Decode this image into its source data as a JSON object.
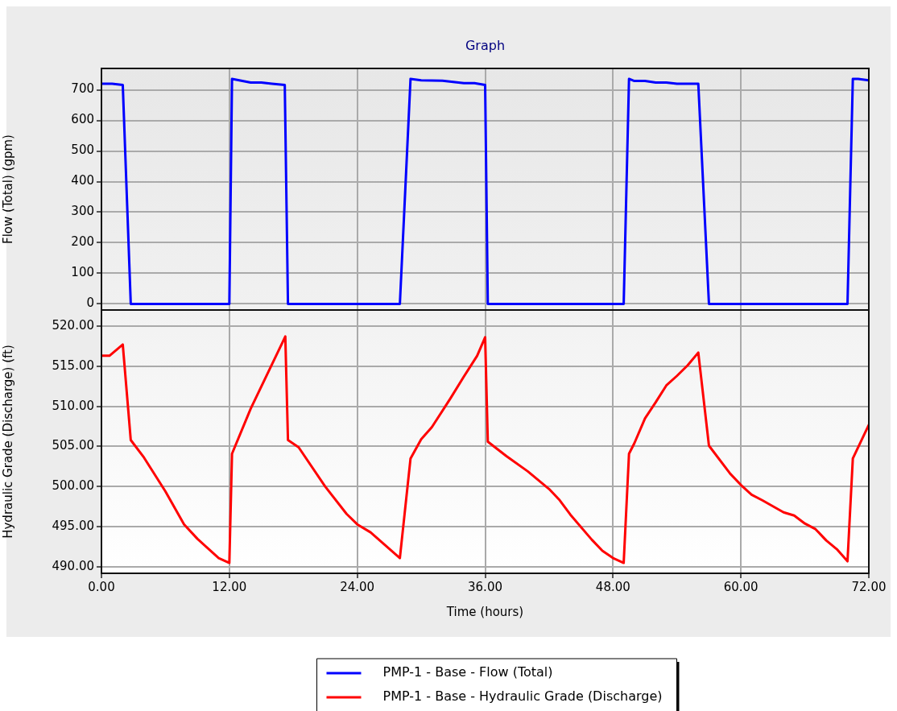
{
  "chart_data": [
    {
      "type": "line",
      "title": "Graph",
      "ylabel": "Flow (Total) (gpm)",
      "tick_labels": "y",
      "xlim": [
        0,
        72
      ],
      "xticks": [
        0,
        12,
        24,
        36,
        48,
        60,
        72
      ],
      "ylim": [
        -20,
        770
      ],
      "yticks": [
        0,
        100,
        200,
        300,
        400,
        500,
        600,
        700
      ],
      "grid": true,
      "legend": "bottom",
      "line_style": "solid",
      "series": [
        {
          "name": "PMP-1 - Base - Flow (Total)",
          "color": "#0000ff",
          "x": [
            0,
            1,
            2,
            2.75,
            12,
            12.25,
            14,
            15,
            16,
            17.2,
            17.5,
            28,
            29,
            30,
            32,
            33,
            34,
            35,
            36,
            36.25,
            49,
            49.5,
            50,
            51,
            52,
            53,
            54,
            56,
            57,
            70,
            70.5,
            71,
            72
          ],
          "values": [
            720,
            720,
            716,
            0,
            0,
            736,
            724,
            724,
            720,
            716,
            0,
            0,
            736,
            731,
            730,
            726,
            722,
            722,
            716,
            0,
            0,
            736,
            729,
            729,
            724,
            724,
            720,
            720,
            0,
            0,
            736,
            736,
            731
          ]
        }
      ]
    },
    {
      "type": "line",
      "xlabel": "Time (hours)",
      "ylabel": "Hydraulic Grade (Discharge) (ft)",
      "xlim": [
        0,
        72
      ],
      "xticks": [
        {
          "value": 0,
          "label": "0.00"
        },
        {
          "value": 12,
          "label": "12.00"
        },
        {
          "value": 24,
          "label": "24.00"
        },
        {
          "value": 36,
          "label": "36.00"
        },
        {
          "value": 48,
          "label": "48.00"
        },
        {
          "value": 60,
          "label": "60.00"
        },
        {
          "value": 72,
          "label": "72.00"
        }
      ],
      "ylim": [
        489.2,
        522
      ],
      "yticks": [
        {
          "value": 490,
          "label": "490.00"
        },
        {
          "value": 495,
          "label": "495.00"
        },
        {
          "value": 500,
          "label": "500.00"
        },
        {
          "value": 505,
          "label": "505.00"
        },
        {
          "value": 510,
          "label": "510.00"
        },
        {
          "value": 515,
          "label": "515.00"
        },
        {
          "value": 520,
          "label": "520.00"
        }
      ],
      "grid": true,
      "legend": "bottom",
      "line_style": "solid",
      "series": [
        {
          "name": "PMP-1 - Base - Hydraulic Grade (Discharge)",
          "color": "#ff0000",
          "x": [
            0,
            0.75,
            2,
            2.75,
            4,
            6,
            7.75,
            9,
            10,
            11,
            12,
            12.25,
            14,
            17,
            17.25,
            17.5,
            18.5,
            21,
            23,
            24,
            25.25,
            28,
            29,
            30,
            31,
            32.75,
            34,
            35.25,
            36,
            36.25,
            38,
            40,
            42,
            43,
            44,
            46,
            47,
            48,
            49,
            49.5,
            50,
            51,
            52,
            53,
            54,
            55,
            56,
            57,
            59,
            60,
            61,
            62,
            64,
            65,
            66,
            67,
            68,
            69,
            70,
            70.5,
            72
          ],
          "values": [
            516.3,
            516.3,
            517.7,
            505.8,
            503.6,
            499.4,
            495.3,
            493.5,
            492.3,
            491.1,
            490.5,
            504.1,
            509.7,
            518.0,
            518.7,
            505.8,
            504.9,
            500.0,
            496.6,
            495.3,
            494.3,
            491.1,
            503.5,
            505.9,
            507.4,
            511.0,
            513.7,
            516.3,
            518.6,
            505.6,
            503.8,
            501.9,
            499.7,
            498.3,
            496.5,
            493.4,
            492.0,
            491.1,
            490.5,
            504.1,
            505.4,
            508.5,
            510.5,
            512.6,
            513.8,
            515.1,
            516.7,
            505.1,
            501.6,
            500.2,
            499.0,
            498.3,
            496.8,
            496.4,
            495.4,
            494.7,
            493.3,
            492.2,
            490.7,
            503.5,
            507.7
          ]
        }
      ]
    }
  ]
}
